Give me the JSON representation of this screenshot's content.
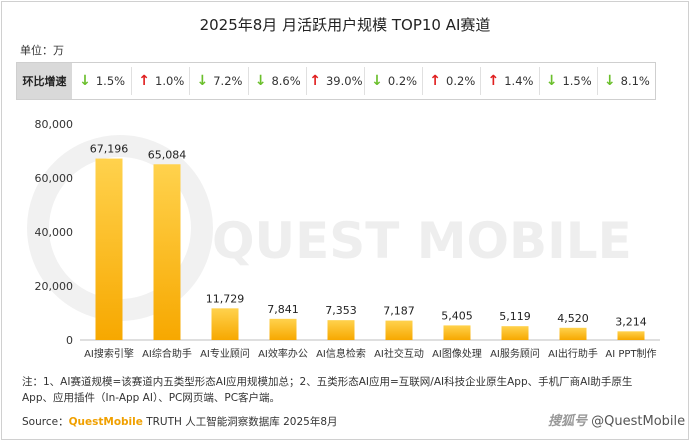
{
  "header": {
    "title": "2025年8月 月活跃用户规模 TOP10 AI赛道",
    "unit": "单位：万"
  },
  "mom": {
    "label": "环比增速",
    "items": [
      {
        "direction": "down",
        "value": "1.5%"
      },
      {
        "direction": "up",
        "value": "1.0%"
      },
      {
        "direction": "down",
        "value": "7.2%"
      },
      {
        "direction": "down",
        "value": "8.6%"
      },
      {
        "direction": "up",
        "value": "39.0%"
      },
      {
        "direction": "down",
        "value": "0.2%"
      },
      {
        "direction": "up",
        "value": "0.2%"
      },
      {
        "direction": "up",
        "value": "1.4%"
      },
      {
        "direction": "down",
        "value": "1.5%"
      },
      {
        "direction": "down",
        "value": "8.1%"
      }
    ]
  },
  "chart_data": {
    "type": "bar",
    "title": "2025年8月 月活跃用户规模 TOP10 AI赛道",
    "ylabel": "单位：万",
    "xlabel": "",
    "categories": [
      "AI搜索引擎",
      "AI综合助手",
      "AI专业顾问",
      "AI效率办公",
      "AI信息检索",
      "AI社交互动",
      "AI图像处理",
      "AI服务顾问",
      "AI出行助手",
      "AI PPT制作"
    ],
    "values": [
      67196,
      65084,
      11729,
      7841,
      7353,
      7187,
      5405,
      5119,
      4520,
      3214
    ],
    "value_labels": [
      "67,196",
      "65,084",
      "11,729",
      "7,841",
      "7,353",
      "7,187",
      "5,405",
      "5,119",
      "4,520",
      "3,214"
    ],
    "ylim": [
      0,
      80000
    ],
    "yticks": [
      0,
      20000,
      40000,
      60000,
      80000
    ],
    "ytick_labels": [
      "0",
      "20,000",
      "40,000",
      "60,000",
      "80,000"
    ],
    "grid": false,
    "bar_color_top": "#ffd24d",
    "bar_color_bottom": "#f7a800"
  },
  "watermark": "QUEST MOBILE",
  "footer": {
    "note": "注：1、AI赛道规模=该赛道内五类型形态AI应用规模加总；2、五类形态AI应用=互联网/AI科技企业原生App、手机厂商AI助手原生App、应用插件（In-App AI）、PC网页端、PC客户端。",
    "source_prefix": "Source：",
    "source_brand": "QuestMobile",
    "source_rest": " TRUTH 人工智能洞察数据库 2025年8月",
    "attribution_zh": "搜狐号",
    "attribution_handle": "@QuestMobile"
  }
}
